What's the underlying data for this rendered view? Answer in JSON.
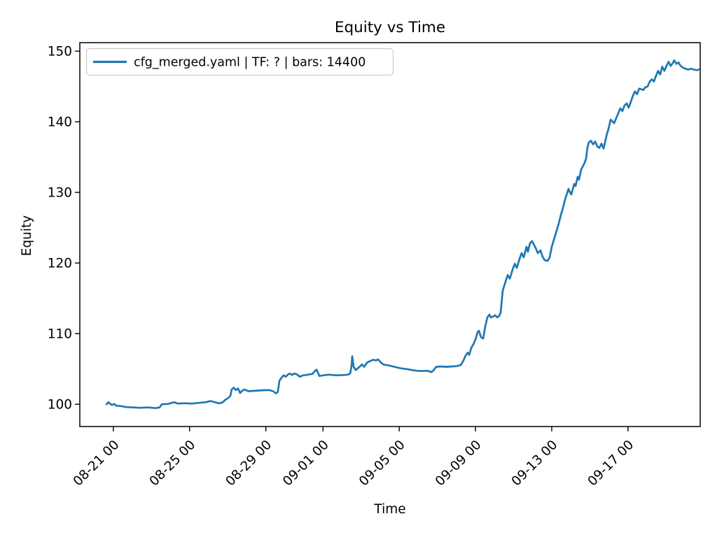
{
  "chart_data": {
    "type": "line",
    "title": "Equity vs Time",
    "xlabel": "Time",
    "ylabel": "Equity",
    "grid": false,
    "legend_position": "upper-left",
    "x_axis": {
      "note": "x values are days; day 1 = tick '08-21 00', one unit = one day",
      "lim": [
        -0.76,
        31.79
      ],
      "ticks": [
        {
          "label": "08-21 00",
          "day": 1
        },
        {
          "label": "08-25 00",
          "day": 5
        },
        {
          "label": "08-29 00",
          "day": 9
        },
        {
          "label": "09-01 00",
          "day": 12
        },
        {
          "label": "09-05 00",
          "day": 16
        },
        {
          "label": "09-09 00",
          "day": 20
        },
        {
          "label": "09-13 00",
          "day": 24
        },
        {
          "label": "09-17 00",
          "day": 28
        }
      ]
    },
    "y_axis": {
      "lim": [
        96.85,
        151.2
      ],
      "ticks": [
        {
          "label": "100",
          "value": 100
        },
        {
          "label": "110",
          "value": 110
        },
        {
          "label": "120",
          "value": 120
        },
        {
          "label": "130",
          "value": 130
        },
        {
          "label": "140",
          "value": 140
        },
        {
          "label": "150",
          "value": 150
        }
      ]
    },
    "series": [
      {
        "name": "cfg_merged.yaml | TF: ? | bars: 14400",
        "color": "#1f77b4",
        "points": [
          [
            0.64,
            100.0
          ],
          [
            0.75,
            100.3
          ],
          [
            0.82,
            100.1
          ],
          [
            0.93,
            99.9
          ],
          [
            1.04,
            100.05
          ],
          [
            1.15,
            99.8
          ],
          [
            1.37,
            99.75
          ],
          [
            1.67,
            99.6
          ],
          [
            2.04,
            99.55
          ],
          [
            2.4,
            99.5
          ],
          [
            2.84,
            99.55
          ],
          [
            3.21,
            99.45
          ],
          [
            3.43,
            99.55
          ],
          [
            3.54,
            100.0
          ],
          [
            3.87,
            100.05
          ],
          [
            4.2,
            100.3
          ],
          [
            4.39,
            100.1
          ],
          [
            4.75,
            100.15
          ],
          [
            5.12,
            100.1
          ],
          [
            5.49,
            100.2
          ],
          [
            5.86,
            100.3
          ],
          [
            6.08,
            100.45
          ],
          [
            6.26,
            100.35
          ],
          [
            6.44,
            100.2
          ],
          [
            6.59,
            100.15
          ],
          [
            6.74,
            100.3
          ],
          [
            6.88,
            100.65
          ],
          [
            7.03,
            100.9
          ],
          [
            7.14,
            101.2
          ],
          [
            7.21,
            102.1
          ],
          [
            7.32,
            102.35
          ],
          [
            7.43,
            102.0
          ],
          [
            7.54,
            102.25
          ],
          [
            7.65,
            101.6
          ],
          [
            7.76,
            101.9
          ],
          [
            7.87,
            102.1
          ],
          [
            8.09,
            101.85
          ],
          [
            8.35,
            101.9
          ],
          [
            8.64,
            101.95
          ],
          [
            8.94,
            102.0
          ],
          [
            9.19,
            102.0
          ],
          [
            9.38,
            101.85
          ],
          [
            9.52,
            101.55
          ],
          [
            9.63,
            101.75
          ],
          [
            9.71,
            103.3
          ],
          [
            9.82,
            103.75
          ],
          [
            9.93,
            104.1
          ],
          [
            10.04,
            103.9
          ],
          [
            10.15,
            104.2
          ],
          [
            10.26,
            104.35
          ],
          [
            10.37,
            104.15
          ],
          [
            10.48,
            104.35
          ],
          [
            10.63,
            104.25
          ],
          [
            10.78,
            103.9
          ],
          [
            10.96,
            104.1
          ],
          [
            11.22,
            104.2
          ],
          [
            11.44,
            104.3
          ],
          [
            11.59,
            104.75
          ],
          [
            11.66,
            104.9
          ],
          [
            11.81,
            104.0
          ],
          [
            11.99,
            104.1
          ],
          [
            12.32,
            104.2
          ],
          [
            12.69,
            104.1
          ],
          [
            13.06,
            104.15
          ],
          [
            13.32,
            104.2
          ],
          [
            13.43,
            104.4
          ],
          [
            13.5,
            105.5
          ],
          [
            13.53,
            106.8
          ],
          [
            13.61,
            105.3
          ],
          [
            13.72,
            104.85
          ],
          [
            13.87,
            105.2
          ],
          [
            14.05,
            105.65
          ],
          [
            14.16,
            105.3
          ],
          [
            14.31,
            105.9
          ],
          [
            14.45,
            106.1
          ],
          [
            14.64,
            106.3
          ],
          [
            14.78,
            106.2
          ],
          [
            14.89,
            106.35
          ],
          [
            15.04,
            105.9
          ],
          [
            15.19,
            105.6
          ],
          [
            15.44,
            105.5
          ],
          [
            15.74,
            105.3
          ],
          [
            16.07,
            105.1
          ],
          [
            16.36,
            105.0
          ],
          [
            16.66,
            104.85
          ],
          [
            16.91,
            104.75
          ],
          [
            17.17,
            104.7
          ],
          [
            17.47,
            104.75
          ],
          [
            17.69,
            104.55
          ],
          [
            17.8,
            104.8
          ],
          [
            17.94,
            105.3
          ],
          [
            18.2,
            105.35
          ],
          [
            18.49,
            105.3
          ],
          [
            18.75,
            105.35
          ],
          [
            19.01,
            105.4
          ],
          [
            19.23,
            105.55
          ],
          [
            19.37,
            106.2
          ],
          [
            19.48,
            106.9
          ],
          [
            19.59,
            107.3
          ],
          [
            19.67,
            107.0
          ],
          [
            19.78,
            108.0
          ],
          [
            19.89,
            108.5
          ],
          [
            20.0,
            109.2
          ],
          [
            20.11,
            110.2
          ],
          [
            20.18,
            110.4
          ],
          [
            20.29,
            109.5
          ],
          [
            20.4,
            109.3
          ],
          [
            20.51,
            111.0
          ],
          [
            20.62,
            112.3
          ],
          [
            20.73,
            112.7
          ],
          [
            20.81,
            112.3
          ],
          [
            20.92,
            112.4
          ],
          [
            21.03,
            112.6
          ],
          [
            21.14,
            112.3
          ],
          [
            21.25,
            112.5
          ],
          [
            21.32,
            113.0
          ],
          [
            21.43,
            116.1
          ],
          [
            21.58,
            117.4
          ],
          [
            21.69,
            118.3
          ],
          [
            21.8,
            117.8
          ],
          [
            21.95,
            119.1
          ],
          [
            22.06,
            119.9
          ],
          [
            22.17,
            119.3
          ],
          [
            22.31,
            120.6
          ],
          [
            22.42,
            121.4
          ],
          [
            22.53,
            120.8
          ],
          [
            22.68,
            122.3
          ],
          [
            22.75,
            121.6
          ],
          [
            22.86,
            122.8
          ],
          [
            22.97,
            123.1
          ],
          [
            23.16,
            122.1
          ],
          [
            23.27,
            121.4
          ],
          [
            23.41,
            121.8
          ],
          [
            23.52,
            120.9
          ],
          [
            23.63,
            120.4
          ],
          [
            23.78,
            120.3
          ],
          [
            23.89,
            120.8
          ],
          [
            24.0,
            122.3
          ],
          [
            24.15,
            123.6
          ],
          [
            24.26,
            124.6
          ],
          [
            24.37,
            125.6
          ],
          [
            24.48,
            126.8
          ],
          [
            24.59,
            127.8
          ],
          [
            24.7,
            129.0
          ],
          [
            24.81,
            129.9
          ],
          [
            24.88,
            130.5
          ],
          [
            24.96,
            130.0
          ],
          [
            25.03,
            129.7
          ],
          [
            25.1,
            130.4
          ],
          [
            25.18,
            131.2
          ],
          [
            25.25,
            130.9
          ],
          [
            25.36,
            132.2
          ],
          [
            25.43,
            131.8
          ],
          [
            25.54,
            133.2
          ],
          [
            25.65,
            133.8
          ],
          [
            25.73,
            134.2
          ],
          [
            25.8,
            134.8
          ],
          [
            25.87,
            136.3
          ],
          [
            25.95,
            137.1
          ],
          [
            26.06,
            137.3
          ],
          [
            26.17,
            136.8
          ],
          [
            26.28,
            137.2
          ],
          [
            26.39,
            136.5
          ],
          [
            26.5,
            136.3
          ],
          [
            26.61,
            136.9
          ],
          [
            26.72,
            136.2
          ],
          [
            26.83,
            137.5
          ],
          [
            26.9,
            138.3
          ],
          [
            26.98,
            139.0
          ],
          [
            27.09,
            140.3
          ],
          [
            27.2,
            140.0
          ],
          [
            27.27,
            139.8
          ],
          [
            27.38,
            140.5
          ],
          [
            27.49,
            141.2
          ],
          [
            27.6,
            141.9
          ],
          [
            27.71,
            141.5
          ],
          [
            27.82,
            142.3
          ],
          [
            27.93,
            142.6
          ],
          [
            28.04,
            142.0
          ],
          [
            28.15,
            142.8
          ],
          [
            28.26,
            143.7
          ],
          [
            28.37,
            144.3
          ],
          [
            28.48,
            143.9
          ],
          [
            28.59,
            144.7
          ],
          [
            28.7,
            144.6
          ],
          [
            28.81,
            144.5
          ],
          [
            28.92,
            144.9
          ],
          [
            29.03,
            145.0
          ],
          [
            29.14,
            145.7
          ],
          [
            29.25,
            146.0
          ],
          [
            29.36,
            145.7
          ],
          [
            29.47,
            146.5
          ],
          [
            29.58,
            147.2
          ],
          [
            29.69,
            146.7
          ],
          [
            29.8,
            147.8
          ],
          [
            29.91,
            147.2
          ],
          [
            30.02,
            147.9
          ],
          [
            30.13,
            148.5
          ],
          [
            30.24,
            147.9
          ],
          [
            30.35,
            148.3
          ],
          [
            30.43,
            148.7
          ],
          [
            30.54,
            148.2
          ],
          [
            30.65,
            148.4
          ],
          [
            30.76,
            147.9
          ],
          [
            30.87,
            147.7
          ],
          [
            31.02,
            147.5
          ],
          [
            31.16,
            147.4
          ],
          [
            31.31,
            147.5
          ],
          [
            31.46,
            147.4
          ],
          [
            31.61,
            147.3
          ],
          [
            31.72,
            147.4
          ]
        ]
      }
    ]
  }
}
